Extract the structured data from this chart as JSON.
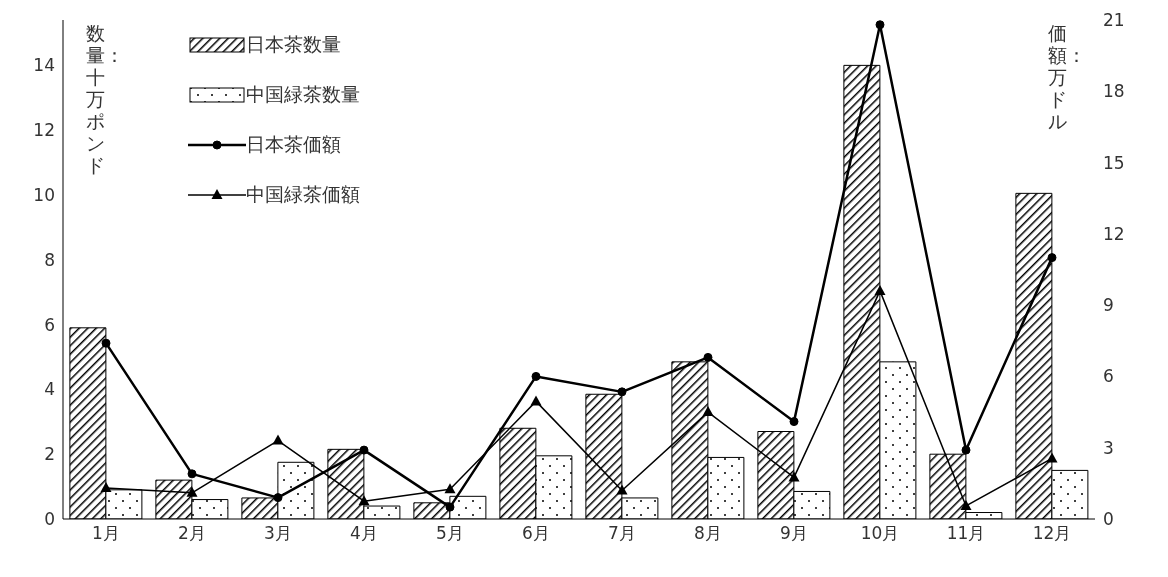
{
  "chart_data": {
    "type": "bar",
    "ylabel": "数量：十万ポンド",
    "y2label": "価額：万ドル",
    "categories": [
      "1月",
      "2月",
      "3月",
      "4月",
      "5月",
      "6月",
      "7月",
      "8月",
      "9月",
      "10月",
      "11月",
      "12月"
    ],
    "ylim": [
      0,
      15.4
    ],
    "yticks": [
      0,
      2,
      4,
      6,
      8,
      10,
      12,
      14
    ],
    "y2lim": [
      0,
      21
    ],
    "y2ticks": [
      0,
      3,
      6,
      9,
      12,
      15,
      18,
      21
    ],
    "legend": "top left",
    "grid": false,
    "series": [
      {
        "name": "日本茶数量",
        "color": "#000000",
        "values": [
          5.9,
          1.2,
          0.65,
          2.15,
          0.5,
          2.8,
          3.85,
          4.85,
          2.7,
          14.0,
          2.0,
          10.05
        ]
      },
      {
        "name": "中国緑茶数量",
        "color": "#000000",
        "values": [
          0.9,
          0.6,
          1.75,
          0.4,
          0.7,
          1.95,
          0.65,
          1.9,
          0.85,
          4.85,
          0.2,
          1.5
        ]
      },
      {
        "name": "日本茶価額",
        "type": "line",
        "axis": "y2",
        "color": "#000000",
        "marker": "circle",
        "values": [
          7.4,
          1.9,
          0.9,
          2.9,
          0.5,
          6.0,
          5.35,
          6.8,
          4.1,
          20.8,
          2.9,
          11.0
        ]
      },
      {
        "name": "中国緑茶価額",
        "type": "line",
        "axis": "y2",
        "color": "#000000",
        "marker": "triangle",
        "values": [
          1.3,
          1.1,
          3.3,
          0.75,
          1.25,
          4.95,
          1.2,
          4.5,
          1.75,
          9.6,
          0.55,
          2.55
        ]
      }
    ]
  }
}
